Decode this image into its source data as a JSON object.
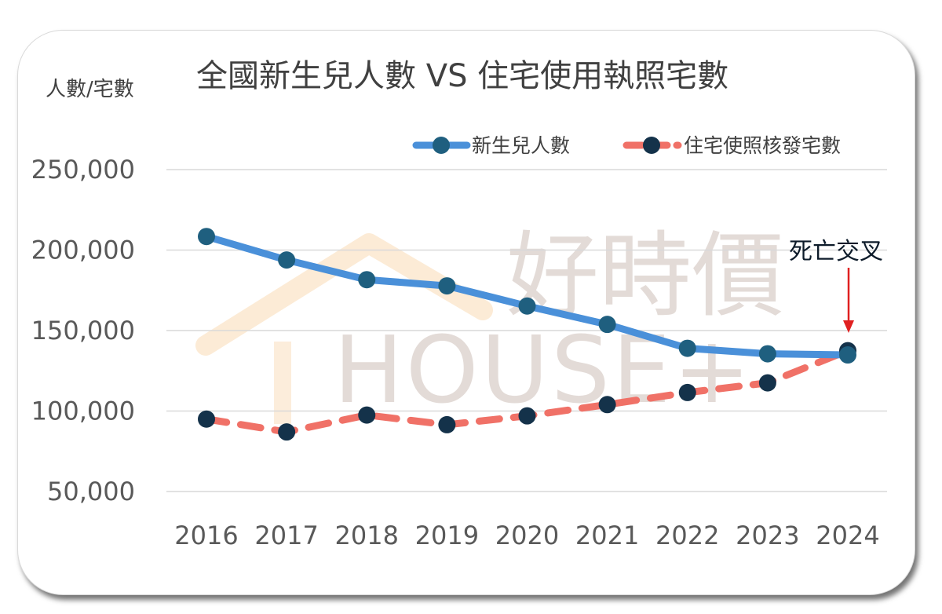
{
  "chart_data": {
    "type": "line",
    "title": "全國新生兒人數 VS 住宅使用執照宅數",
    "ylabel": "人數/宅數",
    "xlabel": "",
    "categories": [
      "2016",
      "2017",
      "2018",
      "2019",
      "2020",
      "2021",
      "2022",
      "2023",
      "2024"
    ],
    "y_ticks": [
      "250,000",
      "200,000",
      "150,000",
      "100,000",
      "50,000"
    ],
    "ylim": [
      50000,
      250000
    ],
    "grid": true,
    "legend_position": "top-right",
    "series": [
      {
        "name": "新生兒人數",
        "values": [
          208440,
          193844,
          181601,
          177767,
          165249,
          153820,
          138986,
          135571,
          134856
        ],
        "color": "#4a90d9",
        "marker_color": "#1f5f7f",
        "style": "solid"
      },
      {
        "name": "住宅使照核發宅數",
        "values": [
          95000,
          87000,
          97500,
          91500,
          97000,
          104000,
          111500,
          117500,
          137500
        ],
        "color": "#f07167",
        "marker_color": "#14324a",
        "style": "dashed"
      }
    ],
    "annotations": [
      {
        "text": "死亡交叉",
        "category": "2024",
        "arrow_color": "#e02020"
      }
    ]
  },
  "watermark": {
    "chinese": "好時價",
    "english": "HOUSE+"
  }
}
